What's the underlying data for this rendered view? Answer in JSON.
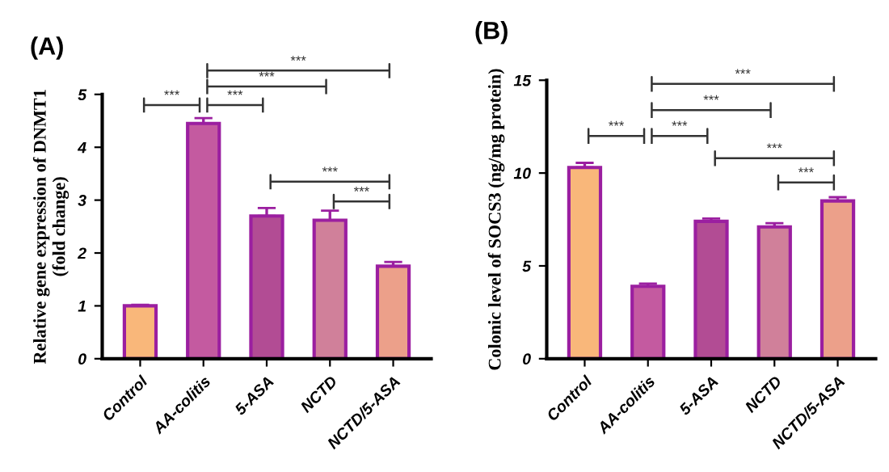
{
  "chart_data": [
    {
      "type": "bar",
      "title": "(A)",
      "ylabel": "Relative gene expression of DNMT1\n(fold change)",
      "categories": [
        "Control",
        "AA-colitis",
        "5-ASA",
        "NCTD",
        "NCTD/5-ASA"
      ],
      "values": [
        1.0,
        4.45,
        2.7,
        2.62,
        1.75
      ],
      "errors": [
        0.02,
        0.1,
        0.15,
        0.18,
        0.08
      ],
      "colors": [
        "#f9b77a",
        "#c45aa0",
        "#b24c94",
        "#d0809a",
        "#eca08a"
      ],
      "ylim": [
        0,
        5
      ],
      "yticks": [
        0,
        1,
        2,
        3,
        4,
        5
      ],
      "grid": false,
      "annotations": [
        "***",
        "***",
        "***",
        "***",
        "***",
        "***"
      ]
    },
    {
      "type": "bar",
      "title": "(B)",
      "ylabel": "Colonic level of SOCS3 (ng/mg protein)",
      "categories": [
        "Control",
        "AA-colitis",
        "5-ASA",
        "NCTD",
        "NCTD/5-ASA"
      ],
      "values": [
        10.3,
        3.9,
        7.4,
        7.1,
        8.5
      ],
      "errors": [
        0.25,
        0.15,
        0.15,
        0.2,
        0.2
      ],
      "colors": [
        "#f9b77a",
        "#c45aa0",
        "#b24c94",
        "#d0809a",
        "#eca08a"
      ],
      "ylim": [
        0,
        15
      ],
      "yticks": [
        0,
        5,
        10,
        15
      ],
      "grid": false,
      "annotations": [
        "***",
        "***",
        "***",
        "***",
        "***",
        "***"
      ]
    }
  ]
}
